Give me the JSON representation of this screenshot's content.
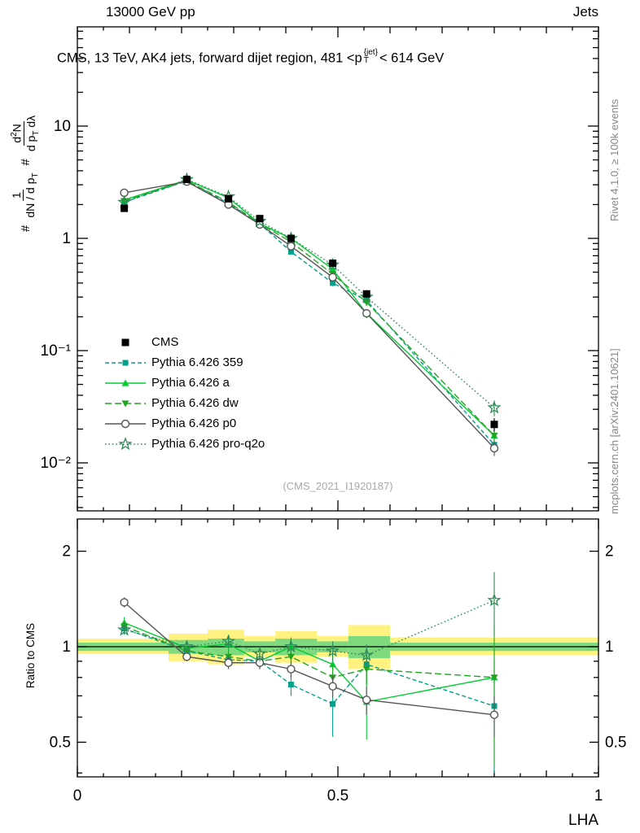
{
  "header": {
    "left": "13000 GeV pp",
    "right": "Jets"
  },
  "title": {
    "part1": "CMS, 13 TeV, AK4 jets, forward dijet region, 481 <p",
    "sup": "{jet}",
    "sub": "T",
    "part2": "< 614 GeV"
  },
  "ylabel": {
    "hash1": "#",
    "f1num": "1",
    "f1den_a": "dN / d p",
    "f1den_sub": "T",
    "hash2": "#",
    "f2num_a": "d",
    "f2num_sup": "2",
    "f2num_b": "N",
    "f2den_a": "d p",
    "f2den_sub": "T",
    "f2den_b": " dλ"
  },
  "ratio_ylabel": "Ratio to CMS",
  "watermark": "(CMS_2021_I1920187)",
  "side": {
    "rivet": "Rivet 4.1.0, ≥ 100k events",
    "mcplots": "mcplots.cern.ch [arXiv:2401.10621]"
  },
  "chart_data": {
    "type": "line",
    "xlabel": "LHA",
    "xlim": [
      0,
      1
    ],
    "xticks": [
      {
        "v": 0,
        "label": "0"
      },
      {
        "v": 0.5,
        "label": "0.5"
      },
      {
        "v": 1,
        "label": "1"
      }
    ],
    "x": [
      0.09,
      0.21,
      0.29,
      0.35,
      0.41,
      0.49,
      0.555,
      0.8
    ],
    "main": {
      "ylog": true,
      "ylim": [
        0.0037,
        76
      ],
      "yticks": [
        {
          "v": 10,
          "label": "10"
        },
        {
          "v": 1,
          "label": "1"
        },
        {
          "v": 0.1,
          "label": "10⁻¹"
        },
        {
          "v": 0.01,
          "label": "10⁻²"
        }
      ]
    },
    "ratio": {
      "ylog": true,
      "ylim": [
        0.39,
        2.53
      ],
      "ref": 1,
      "yticks": [
        {
          "v": 2,
          "label": "2"
        },
        {
          "v": 1,
          "label": "1"
        },
        {
          "v": 0.5,
          "label": "0.5"
        }
      ],
      "band_colors": {
        "yellow": "#fff280",
        "green": "#7fd97f"
      },
      "bands": [
        {
          "x0": 0.0,
          "x1": 0.175,
          "yellow": [
            0.95,
            1.06
          ],
          "green": [
            0.97,
            1.03
          ]
        },
        {
          "x0": 0.175,
          "x1": 0.25,
          "yellow": [
            0.9,
            1.1
          ],
          "green": [
            0.95,
            1.05
          ]
        },
        {
          "x0": 0.25,
          "x1": 0.32,
          "yellow": [
            0.88,
            1.13
          ],
          "green": [
            0.94,
            1.06
          ]
        },
        {
          "x0": 0.32,
          "x1": 0.38,
          "yellow": [
            0.93,
            1.08
          ],
          "green": [
            0.96,
            1.04
          ]
        },
        {
          "x0": 0.38,
          "x1": 0.46,
          "yellow": [
            0.89,
            1.12
          ],
          "green": [
            0.94,
            1.06
          ]
        },
        {
          "x0": 0.46,
          "x1": 0.52,
          "yellow": [
            0.93,
            1.08
          ],
          "green": [
            0.96,
            1.04
          ]
        },
        {
          "x0": 0.52,
          "x1": 0.6,
          "yellow": [
            0.85,
            1.17
          ],
          "green": [
            0.92,
            1.08
          ]
        },
        {
          "x0": 0.6,
          "x1": 1.0,
          "yellow": [
            0.94,
            1.07
          ],
          "green": [
            0.97,
            1.03
          ]
        }
      ]
    },
    "series": [
      {
        "name": "CMS",
        "color": "#000000",
        "marker": "square",
        "msize": 9,
        "line": "none",
        "values": [
          1.85,
          3.35,
          2.25,
          1.5,
          1.0,
          0.6,
          0.32,
          0.022
        ],
        "errors": [
          0.1,
          0.12,
          0.09,
          0.06,
          0.05,
          0.035,
          0.025,
          0.003
        ]
      },
      {
        "name": "Pythia 6.426 359",
        "color": "#00a08a",
        "marker": "square",
        "msize": 7,
        "line": "dash2",
        "values": [
          2.1,
          3.25,
          2.05,
          1.35,
          0.76,
          0.4,
          0.28,
          0.0145
        ],
        "errors": [
          0.07,
          0.09,
          0.07,
          0.05,
          0.03,
          0.025,
          0.02,
          0.003
        ],
        "ratio": [
          1.14,
          0.97,
          0.91,
          0.9,
          0.76,
          0.66,
          0.88,
          0.65
        ],
        "ratio_errors": [
          0.04,
          0.03,
          0.04,
          0.05,
          0.06,
          0.14,
          0.12,
          0.25
        ]
      },
      {
        "name": "Pythia 6.426 a",
        "color": "#00cc33",
        "marker": "triangle-up",
        "msize": 9,
        "line": "solid",
        "values": [
          2.2,
          3.3,
          2.3,
          1.35,
          1.0,
          0.53,
          0.215,
          0.0175
        ],
        "errors": [
          0.08,
          0.09,
          0.08,
          0.05,
          0.04,
          0.03,
          0.02,
          0.003
        ],
        "ratio": [
          1.19,
          0.99,
          1.02,
          0.9,
          1.0,
          0.88,
          0.67,
          0.8
        ],
        "ratio_errors": [
          0.05,
          0.03,
          0.05,
          0.05,
          0.07,
          0.07,
          0.16,
          0.18
        ]
      },
      {
        "name": "Pythia 6.426 dw",
        "color": "#22a422",
        "marker": "triangle-down",
        "msize": 9,
        "line": "dash",
        "values": [
          2.15,
          3.25,
          2.1,
          1.35,
          0.93,
          0.48,
          0.27,
          0.0175
        ],
        "errors": [
          0.07,
          0.09,
          0.07,
          0.05,
          0.04,
          0.03,
          0.02,
          0.004
        ],
        "ratio": [
          1.16,
          0.97,
          0.93,
          0.9,
          0.93,
          0.8,
          0.85,
          0.8
        ],
        "ratio_errors": [
          0.04,
          0.03,
          0.05,
          0.05,
          0.07,
          0.07,
          0.09,
          0.38
        ]
      },
      {
        "name": "Pythia 6.426 p0",
        "color": "#555555",
        "marker": "circle-open",
        "msize": 9,
        "line": "solid",
        "values": [
          2.55,
          3.2,
          2.0,
          1.33,
          0.85,
          0.45,
          0.215,
          0.0135
        ],
        "errors": [
          0.08,
          0.09,
          0.07,
          0.05,
          0.04,
          0.025,
          0.015,
          0.002
        ],
        "ratio": [
          1.38,
          0.93,
          0.89,
          0.89,
          0.85,
          0.75,
          0.68,
          0.61
        ],
        "ratio_errors": [
          0.05,
          0.03,
          0.04,
          0.04,
          0.05,
          0.06,
          0.07,
          0.09
        ]
      },
      {
        "name": "Pythia 6.426 pro-q2o",
        "color": "#2e8b57",
        "marker": "star-open",
        "msize": 12,
        "line": "dot",
        "values": [
          2.1,
          3.35,
          2.35,
          1.42,
          1.0,
          0.58,
          0.3,
          0.031
        ],
        "errors": [
          0.07,
          0.1,
          0.08,
          0.05,
          0.04,
          0.03,
          0.02,
          0.005
        ],
        "ratio": [
          1.13,
          1.0,
          1.04,
          0.95,
          1.0,
          0.97,
          0.94,
          1.4
        ],
        "ratio_errors": [
          0.04,
          0.03,
          0.05,
          0.05,
          0.06,
          0.07,
          0.08,
          0.32
        ]
      }
    ]
  }
}
